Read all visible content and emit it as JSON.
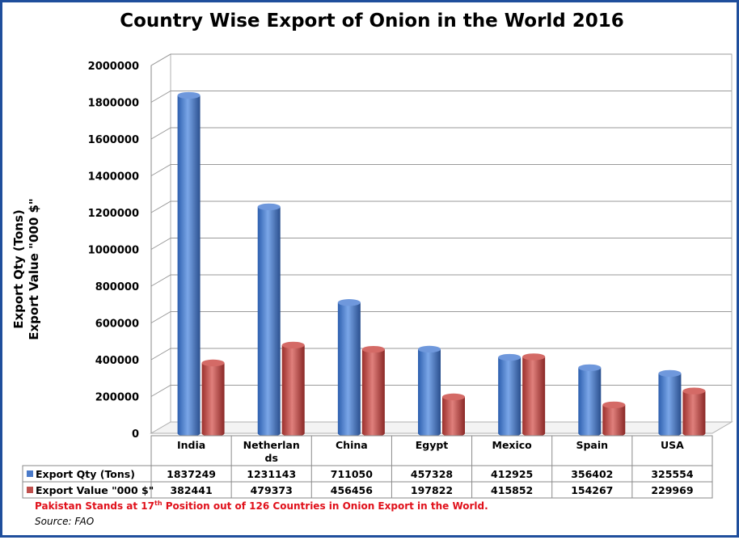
{
  "chart_data": {
    "type": "bar",
    "title": "Country Wise Export of Onion in the World 2016",
    "ylabel_line1": "Export Qty (Tons)",
    "ylabel_line2": "Export Value \"000 $\"",
    "categories": [
      "India",
      "Netherlands",
      "China",
      "Egypt",
      "Mexico",
      "Spain",
      "USA"
    ],
    "category_labels": [
      [
        "India"
      ],
      [
        "Netherlan",
        "ds"
      ],
      [
        "China"
      ],
      [
        "Egypt"
      ],
      [
        "Mexico"
      ],
      [
        "Spain"
      ],
      [
        "USA"
      ]
    ],
    "series": [
      {
        "name": "Export Qty (Tons)",
        "color": "#4a7ac9",
        "values": [
          1837249,
          1231143,
          711050,
          457328,
          412925,
          356402,
          325554
        ]
      },
      {
        "name": "Export Value \"000 $\"",
        "color": "#c0504d",
        "values": [
          382441,
          479373,
          456456,
          197822,
          415852,
          154267,
          229969
        ]
      }
    ],
    "yticks": [
      0,
      200000,
      400000,
      600000,
      800000,
      1000000,
      1200000,
      1400000,
      1600000,
      1800000,
      2000000
    ],
    "ylim": [
      0,
      2000000
    ],
    "grid": true,
    "legend": "data-table"
  },
  "note": {
    "prefix": "Pakistan Stands at 17",
    "sup": "th",
    "suffix": "  Position out of 126 Countries in Onion Export in the World."
  },
  "source": "Source: FAO"
}
